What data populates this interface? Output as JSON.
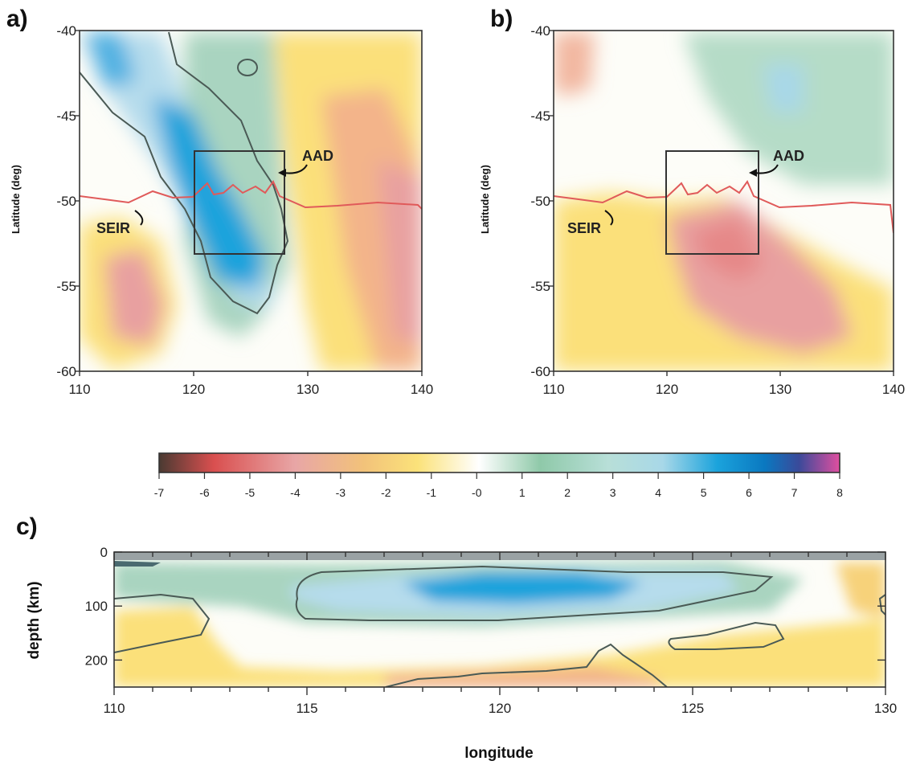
{
  "panels": {
    "a": {
      "letter": "a)",
      "ylabel": "Latitude (deg)",
      "annotations": {
        "aad": "AAD",
        "seir": "SEIR"
      }
    },
    "b": {
      "letter": "b)",
      "ylabel": "Latitude (deg)",
      "annotations": {
        "aad": "AAD",
        "seir": "SEIR"
      }
    },
    "c": {
      "letter": "c)",
      "ylabel": "depth (km)",
      "xlabel": "longitude"
    }
  },
  "map_axes": {
    "x_ticks": [
      "110",
      "120",
      "130",
      "140"
    ],
    "y_ticks": [
      "-40",
      "-45",
      "-50",
      "-55",
      "-60"
    ],
    "lon_range": [
      110,
      140
    ],
    "lat_range": [
      -60,
      -40
    ],
    "box": {
      "lon": [
        120,
        128
      ],
      "lat": [
        -53,
        -47
      ]
    }
  },
  "section_axes": {
    "x_ticks": [
      "110",
      "115",
      "120",
      "125",
      "130"
    ],
    "y_ticks": [
      "0",
      "100",
      "200"
    ],
    "lon_range": [
      110,
      130
    ],
    "depth_range": [
      0,
      250
    ]
  },
  "colorbar": {
    "tick_labels": [
      "-7",
      "-6",
      "-5",
      "-4",
      "-3",
      "-2",
      "-1",
      "-0",
      "1",
      "2",
      "3",
      "4",
      "5",
      "6",
      "7",
      "8"
    ],
    "range": [
      -7,
      8
    ],
    "colors": [
      "#4a3a32",
      "#d94f4f",
      "#e8a6a6",
      "#f2c27a",
      "#fbe27a",
      "#ffffff",
      "#8fc9a9",
      "#a8d8e8",
      "#1ba3dc",
      "#3a4a9a",
      "#e04fa0"
    ]
  }
}
